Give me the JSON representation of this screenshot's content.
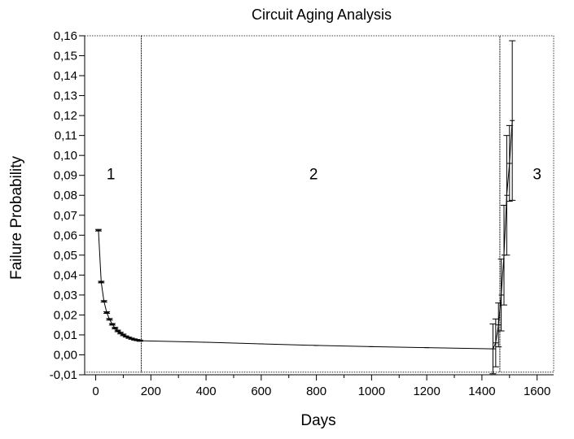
{
  "chart_data": {
    "type": "line",
    "title": "Circuit Aging Analysis",
    "xlabel": "Days",
    "ylabel": "Failure Probability",
    "xlim": [
      -40,
      1660
    ],
    "ylim": [
      -0.01,
      0.16
    ],
    "grid": false,
    "x_ticks": [
      {
        "value": 0,
        "label": "0"
      },
      {
        "value": 200,
        "label": "200"
      },
      {
        "value": 400,
        "label": "400"
      },
      {
        "value": 600,
        "label": "600"
      },
      {
        "value": 800,
        "label": "800"
      },
      {
        "value": 1000,
        "label": "1000"
      },
      {
        "value": 1200,
        "label": "1200"
      },
      {
        "value": 1400,
        "label": "1400"
      },
      {
        "value": 1600,
        "label": "1600"
      }
    ],
    "y_ticks": [
      {
        "value": -0.01,
        "label": "-0,01"
      },
      {
        "value": 0.0,
        "label": "0,00"
      },
      {
        "value": 0.01,
        "label": "0,01"
      },
      {
        "value": 0.02,
        "label": "0,02"
      },
      {
        "value": 0.03,
        "label": "0,03"
      },
      {
        "value": 0.04,
        "label": "0,04"
      },
      {
        "value": 0.05,
        "label": "0,05"
      },
      {
        "value": 0.06,
        "label": "0,06"
      },
      {
        "value": 0.07,
        "label": "0,07"
      },
      {
        "value": 0.08,
        "label": "0,08"
      },
      {
        "value": 0.09,
        "label": "0,09"
      },
      {
        "value": 0.1,
        "label": "0,10"
      },
      {
        "value": 0.11,
        "label": "0,11"
      },
      {
        "value": 0.12,
        "label": "0,12"
      },
      {
        "value": 0.13,
        "label": "0,13"
      },
      {
        "value": 0.14,
        "label": "0,14"
      },
      {
        "value": 0.15,
        "label": "0,15"
      },
      {
        "value": 0.16,
        "label": "0,16"
      }
    ],
    "series": [
      {
        "color": "#000000",
        "points": [
          {
            "x": 10,
            "y": 0.0625,
            "err": 0.0004
          },
          {
            "x": 20,
            "y": 0.0365,
            "err": 0.0004
          },
          {
            "x": 30,
            "y": 0.0268,
            "err": 0.0004
          },
          {
            "x": 40,
            "y": 0.0212,
            "err": 0.0004
          },
          {
            "x": 50,
            "y": 0.0178,
            "err": 0.0004
          },
          {
            "x": 60,
            "y": 0.0153,
            "err": 0.0004
          },
          {
            "x": 70,
            "y": 0.0134,
            "err": 0.0004
          },
          {
            "x": 80,
            "y": 0.012,
            "err": 0.0004
          },
          {
            "x": 90,
            "y": 0.0109,
            "err": 0.0004
          },
          {
            "x": 100,
            "y": 0.01,
            "err": 0.0004
          },
          {
            "x": 110,
            "y": 0.0092,
            "err": 0.0003
          },
          {
            "x": 120,
            "y": 0.0086,
            "err": 0.0003
          },
          {
            "x": 130,
            "y": 0.0081,
            "err": 0.0003
          },
          {
            "x": 140,
            "y": 0.0077,
            "err": 0.0003
          },
          {
            "x": 150,
            "y": 0.0074,
            "err": 0.0003
          },
          {
            "x": 160,
            "y": 0.0071,
            "err": 0.0003
          },
          {
            "x": 400,
            "y": 0.0063,
            "err": 0
          },
          {
            "x": 600,
            "y": 0.0055,
            "err": 0
          },
          {
            "x": 800,
            "y": 0.0047,
            "err": 0
          },
          {
            "x": 1000,
            "y": 0.0041,
            "err": 0
          },
          {
            "x": 1200,
            "y": 0.0036,
            "err": 0
          },
          {
            "x": 1440,
            "y": 0.003,
            "err": 0.0125
          },
          {
            "x": 1450,
            "y": 0.006,
            "err": 0.012
          },
          {
            "x": 1460,
            "y": 0.015,
            "err": 0.011
          },
          {
            "x": 1470,
            "y": 0.03,
            "err": 0.018
          },
          {
            "x": 1480,
            "y": 0.05,
            "err": 0.025
          },
          {
            "x": 1490,
            "y": 0.08,
            "err": 0.03
          },
          {
            "x": 1500,
            "y": 0.096,
            "err": 0.019
          },
          {
            "x": 1510,
            "y": 0.1175,
            "err": 0.04
          }
        ]
      }
    ],
    "region_dividers": [
      {
        "x_from": -40,
        "x_to": 165
      },
      {
        "x_from": 165,
        "x_to": 1465
      },
      {
        "x_from": 1465,
        "x_to": 1660
      }
    ],
    "region_labels": [
      {
        "text": "1",
        "x": 55,
        "y": 0.088
      },
      {
        "text": "2",
        "x": 790,
        "y": 0.088
      },
      {
        "text": "3",
        "x": 1600,
        "y": 0.088
      }
    ]
  }
}
